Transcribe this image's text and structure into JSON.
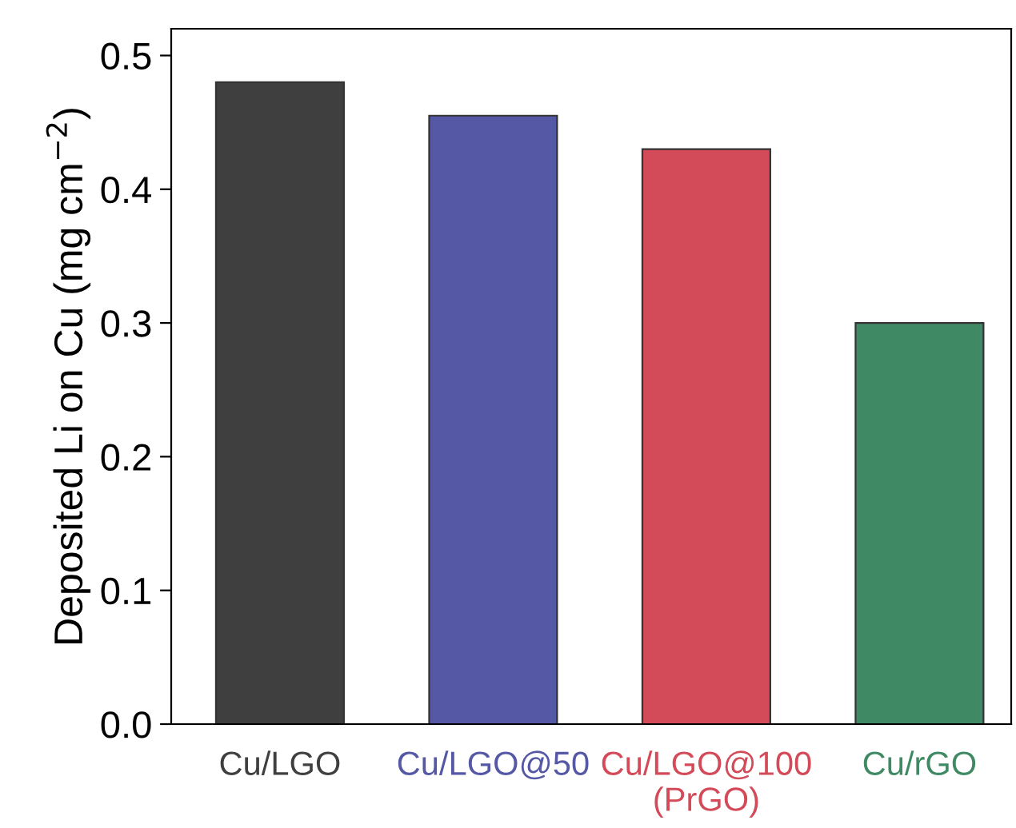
{
  "chart_data": {
    "type": "bar",
    "ylabel": "Deposited Li on Cu (mg cm$^{−2}$)",
    "categories": [
      "Cu/LGO",
      "Cu/LGO@50",
      "Cu/LGO@100\n(PrGO)",
      "Cu/rGO"
    ],
    "values": [
      0.48,
      0.455,
      0.43,
      0.3
    ],
    "colors": [
      "#3f3f3f",
      "#5558a5",
      "#d34a58",
      "#3f8a64"
    ],
    "ylim": [
      0,
      0.52
    ],
    "yticks": [
      {
        "value": 0,
        "label": "0.0"
      },
      0.1,
      0.2,
      0.3,
      0.4,
      0.5
    ],
    "grid": false
  }
}
